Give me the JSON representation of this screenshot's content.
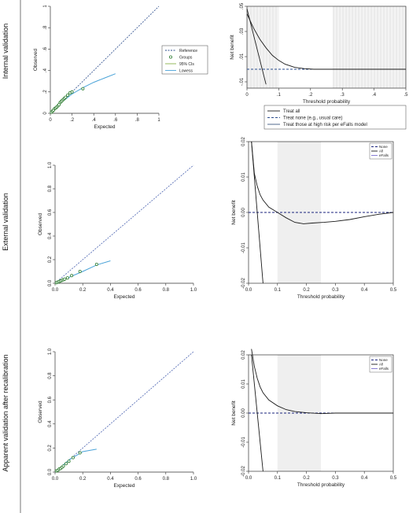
{
  "row_labels": [
    "Internal validation",
    "External validation",
    "Apparent validation after recalibration"
  ],
  "chart_data": [
    {
      "id": "internal-calibration",
      "type": "scatter",
      "xlabel": "Expected",
      "ylabel": "Observed",
      "xlim": [
        0,
        1
      ],
      "ylim": [
        0,
        1
      ],
      "xticks": [
        "0",
        ".2",
        ".4",
        ".6",
        ".8",
        "1"
      ],
      "yticks": [
        "0",
        ".2",
        ".4",
        ".6",
        ".8",
        "1"
      ],
      "legend_position": "right",
      "legend": [
        "Reference",
        "Groups",
        "95% CIs",
        "Lowess"
      ],
      "reference": [
        [
          0,
          0
        ],
        [
          1,
          1
        ]
      ],
      "groups": [
        [
          0.01,
          0.01
        ],
        [
          0.02,
          0.02
        ],
        [
          0.03,
          0.03
        ],
        [
          0.04,
          0.045
        ],
        [
          0.05,
          0.05
        ],
        [
          0.06,
          0.06
        ],
        [
          0.07,
          0.07
        ],
        [
          0.08,
          0.08
        ],
        [
          0.09,
          0.1
        ],
        [
          0.1,
          0.11
        ],
        [
          0.11,
          0.12
        ],
        [
          0.12,
          0.13
        ],
        [
          0.13,
          0.14
        ],
        [
          0.14,
          0.15
        ],
        [
          0.16,
          0.17
        ],
        [
          0.18,
          0.19
        ],
        [
          0.2,
          0.2
        ],
        [
          0.3,
          0.23
        ]
      ],
      "lowess": [
        [
          0.01,
          0.01
        ],
        [
          0.1,
          0.1
        ],
        [
          0.2,
          0.18
        ],
        [
          0.3,
          0.24
        ],
        [
          0.4,
          0.29
        ],
        [
          0.5,
          0.33
        ],
        [
          0.6,
          0.37
        ]
      ],
      "colors": {
        "reference": "#2b4c8c",
        "groups": "#2e7d32",
        "lowess": "#4aa3d8"
      }
    },
    {
      "id": "internal-decision-curve",
      "type": "line",
      "xlabel": "Threshold probability",
      "ylabel": "Net benefit",
      "xlim": [
        0,
        0.5
      ],
      "ylim": [
        -0.015,
        0.05
      ],
      "xticks": [
        "0",
        ".1",
        ".2",
        ".3",
        ".4",
        ".5"
      ],
      "yticks": [
        "-.01",
        ".01",
        ".03",
        ".05"
      ],
      "ytick_values": [
        -0.01,
        0.01,
        0.03,
        0.05
      ],
      "shaded_ranges": [
        [
          0.0,
          0.1
        ],
        [
          0.27,
          0.5
        ]
      ],
      "legend_position": "bottom",
      "legend": [
        "Treat all",
        "Treat none (e.g., usual care)",
        "Treat those at high risk per eFalls model"
      ],
      "series": [
        {
          "name": "Treat all",
          "style": "solid",
          "x": [
            0.0,
            0.06
          ],
          "y": [
            0.048,
            -0.012
          ]
        },
        {
          "name": "Treat none (e.g., usual care)",
          "style": "dashed",
          "x": [
            0,
            0.5
          ],
          "y": [
            0,
            0
          ]
        },
        {
          "name": "Treat those at high risk per eFalls model",
          "style": "solid",
          "x": [
            0,
            0.02,
            0.04,
            0.06,
            0.08,
            0.1,
            0.12,
            0.15,
            0.18,
            0.21,
            0.25,
            0.3,
            0.35,
            0.4,
            0.45,
            0.5
          ],
          "y": [
            0.044,
            0.033,
            0.024,
            0.017,
            0.011,
            0.007,
            0.004,
            0.0015,
            0.0005,
            0.0,
            0.0,
            0.0,
            0.0,
            0.0,
            0.0,
            0.0
          ]
        }
      ],
      "colors": {
        "all": "#1a1a1a",
        "none": "#2b4c8c",
        "model": "#3d5a80"
      }
    },
    {
      "id": "external-calibration",
      "type": "scatter",
      "xlabel": "Expected",
      "ylabel": "Observed",
      "xlim": [
        0,
        1
      ],
      "ylim": [
        0,
        1
      ],
      "xticks": [
        "0.0",
        "0.2",
        "0.4",
        "0.6",
        "0.8",
        "1.0"
      ],
      "yticks": [
        "0.0",
        "0.2",
        "0.4",
        "0.6",
        "0.8",
        "1.0"
      ],
      "reference": [
        [
          0,
          0
        ],
        [
          1,
          1
        ]
      ],
      "groups": [
        [
          0.01,
          0.005
        ],
        [
          0.02,
          0.01
        ],
        [
          0.03,
          0.015
        ],
        [
          0.04,
          0.02
        ],
        [
          0.05,
          0.025
        ],
        [
          0.06,
          0.03
        ],
        [
          0.07,
          0.035
        ],
        [
          0.09,
          0.045
        ],
        [
          0.12,
          0.065
        ],
        [
          0.18,
          0.1
        ],
        [
          0.3,
          0.16
        ]
      ],
      "lowess": [
        [
          0.01,
          0.005
        ],
        [
          0.1,
          0.05
        ],
        [
          0.2,
          0.1
        ],
        [
          0.3,
          0.155
        ],
        [
          0.4,
          0.19
        ]
      ],
      "colors": {
        "reference": "#4a62b0",
        "groups": "#2e7d32",
        "lowess": "#4aa3d8"
      }
    },
    {
      "id": "external-decision-curve",
      "type": "line",
      "xlabel": "Threshold probability",
      "ylabel": "Net benefit",
      "xlim": [
        0,
        0.5
      ],
      "ylim": [
        -0.02,
        0.02
      ],
      "xticks": [
        "0.0",
        "0.1",
        "0.2",
        "0.3",
        "0.4",
        "0.5"
      ],
      "yticks": [
        "-0.02",
        "-0.01",
        "0.00",
        "0.01",
        "0.02"
      ],
      "ytick_values": [
        -0.02,
        -0.01,
        0.0,
        0.01,
        0.02
      ],
      "shaded_ranges": [
        [
          0.1,
          0.25
        ]
      ],
      "legend_position": "top-right",
      "legend": [
        "None",
        "All",
        "eFalls"
      ],
      "series": [
        {
          "name": "None",
          "style": "dashed",
          "x": [
            0,
            0.5
          ],
          "y": [
            0,
            0
          ]
        },
        {
          "name": "All",
          "style": "solid",
          "x": [
            0.01,
            0.05
          ],
          "y": [
            0.02,
            -0.02
          ]
        },
        {
          "name": "eFalls",
          "style": "solid",
          "x": [
            0.01,
            0.02,
            0.03,
            0.04,
            0.05,
            0.07,
            0.1,
            0.13,
            0.16,
            0.19,
            0.22,
            0.26,
            0.3,
            0.35,
            0.4,
            0.45,
            0.5
          ],
          "y": [
            0.02,
            0.011,
            0.0075,
            0.005,
            0.0035,
            0.0015,
            0.0,
            -0.0015,
            -0.0028,
            -0.0032,
            -0.003,
            -0.0028,
            -0.0025,
            -0.002,
            -0.0012,
            -0.0005,
            0.0
          ]
        }
      ],
      "colors": {
        "all": "#1a1a1a",
        "none": "#1a237e",
        "model": "#7b6fd0"
      }
    },
    {
      "id": "recalibrated-calibration",
      "type": "scatter",
      "xlabel": "Expected",
      "ylabel": "Observed",
      "xlim": [
        0,
        1
      ],
      "ylim": [
        0,
        1
      ],
      "xticks": [
        "0.0",
        "0.2",
        "0.4",
        "0.6",
        "0.8",
        "1.0"
      ],
      "yticks": [
        "0.0",
        "0.2",
        "0.4",
        "0.6",
        "0.8",
        "1.0"
      ],
      "reference": [
        [
          0,
          0
        ],
        [
          1,
          1
        ]
      ],
      "groups": [
        [
          0.01,
          0.01
        ],
        [
          0.02,
          0.015
        ],
        [
          0.03,
          0.025
        ],
        [
          0.04,
          0.03
        ],
        [
          0.05,
          0.04
        ],
        [
          0.06,
          0.05
        ],
        [
          0.08,
          0.07
        ],
        [
          0.1,
          0.09
        ],
        [
          0.13,
          0.12
        ],
        [
          0.18,
          0.16
        ]
      ],
      "lowess": [
        [
          0.01,
          0.01
        ],
        [
          0.1,
          0.1
        ],
        [
          0.2,
          0.17
        ],
        [
          0.3,
          0.19
        ]
      ],
      "colors": {
        "reference": "#4a62b0",
        "groups": "#2e7d32",
        "lowess": "#4aa3d8"
      }
    },
    {
      "id": "recalibrated-decision-curve",
      "type": "line",
      "xlabel": "Threshold probability",
      "ylabel": "Net benefit",
      "xlim": [
        0,
        0.5
      ],
      "ylim": [
        -0.02,
        0.02
      ],
      "xticks": [
        "0.0",
        "0.1",
        "0.2",
        "0.3",
        "0.4",
        "0.5"
      ],
      "yticks": [
        "-0.02",
        "-0.01",
        "0.00",
        "0.01",
        "0.02"
      ],
      "ytick_values": [
        -0.02,
        -0.01,
        0.0,
        0.01,
        0.02
      ],
      "shaded_ranges": [
        [
          0.1,
          0.25
        ]
      ],
      "legend_position": "top-right",
      "legend": [
        "None",
        "All",
        "eFalls"
      ],
      "series": [
        {
          "name": "None",
          "style": "dashed",
          "x": [
            0,
            0.5
          ],
          "y": [
            0,
            0
          ]
        },
        {
          "name": "All",
          "style": "solid",
          "x": [
            0.01,
            0.05
          ],
          "y": [
            0.02,
            -0.02
          ]
        },
        {
          "name": "eFalls",
          "style": "solid",
          "x": [
            0.01,
            0.02,
            0.03,
            0.04,
            0.05,
            0.07,
            0.1,
            0.13,
            0.16,
            0.2,
            0.25,
            0.3,
            0.4,
            0.5
          ],
          "y": [
            0.022,
            0.016,
            0.012,
            0.009,
            0.007,
            0.0045,
            0.0025,
            0.0012,
            0.0005,
            0.0001,
            -0.0002,
            0.0,
            0.0,
            0.0
          ]
        }
      ],
      "colors": {
        "all": "#1a1a1a",
        "none": "#1a237e",
        "model": "#7b6fd0"
      }
    }
  ]
}
